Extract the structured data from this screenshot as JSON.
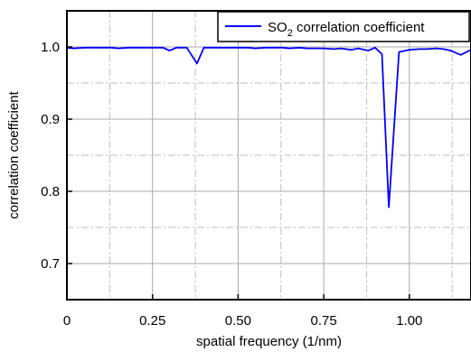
{
  "chart_data": {
    "type": "line",
    "xlabel": "spatial frequency (1/nm)",
    "ylabel": "correlation coefficient",
    "xlim": [
      0,
      1.18
    ],
    "ylim": [
      0.65,
      1.05
    ],
    "x_ticks": [
      0,
      0.25,
      0.5,
      0.75,
      1.0
    ],
    "x_tick_labels": [
      "0",
      "0.25",
      "0.50",
      "0.75",
      "1.00"
    ],
    "y_ticks": [
      0.7,
      0.8,
      0.9,
      1.0
    ],
    "y_tick_labels": [
      "0.7",
      "0.8",
      "0.9",
      "1.0"
    ],
    "grid": true,
    "legend_position": "top-right",
    "series": [
      {
        "name": "SO2 correlation coefficient",
        "legend_main": "SO",
        "legend_sub": "2",
        "legend_rest": " correlation coefficient",
        "color": "#0000ff",
        "x": [
          0,
          0.02,
          0.05,
          0.08,
          0.1,
          0.13,
          0.15,
          0.18,
          0.2,
          0.23,
          0.25,
          0.28,
          0.3,
          0.32,
          0.35,
          0.38,
          0.4,
          0.43,
          0.45,
          0.48,
          0.5,
          0.53,
          0.55,
          0.58,
          0.6,
          0.63,
          0.65,
          0.68,
          0.7,
          0.73,
          0.75,
          0.78,
          0.8,
          0.83,
          0.85,
          0.88,
          0.9,
          0.92,
          0.94,
          0.97,
          1.0,
          1.03,
          1.05,
          1.08,
          1.1,
          1.12,
          1.15,
          1.18
        ],
        "y": [
          0.999,
          0.998,
          0.999,
          0.999,
          0.999,
          0.999,
          0.998,
          0.999,
          0.999,
          0.999,
          0.999,
          0.999,
          0.995,
          0.999,
          0.999,
          0.977,
          0.999,
          0.999,
          0.999,
          0.999,
          0.999,
          0.999,
          0.998,
          0.999,
          0.999,
          0.999,
          0.998,
          0.999,
          0.998,
          0.998,
          0.998,
          0.997,
          0.998,
          0.996,
          0.998,
          0.995,
          0.999,
          0.99,
          0.778,
          0.993,
          0.996,
          0.997,
          0.997,
          0.998,
          0.997,
          0.995,
          0.989,
          0.996
        ]
      }
    ]
  }
}
